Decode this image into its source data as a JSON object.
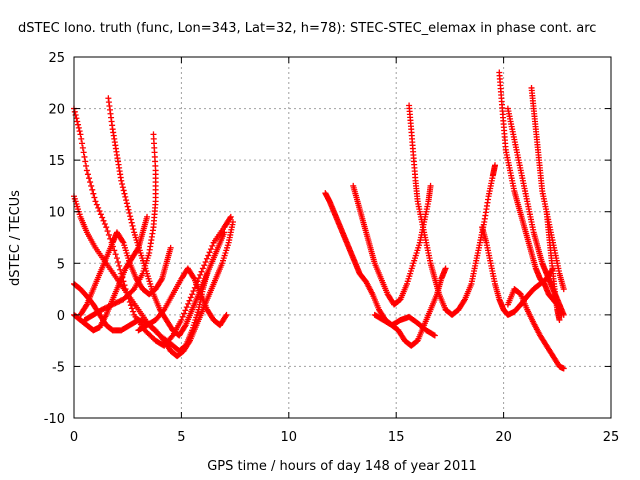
{
  "chart_data": {
    "type": "scatter",
    "title": "dSTEC Iono. truth (func, Lon=343, Lat=32, h=78): STEC-STEC_elemax in phase cont. arc",
    "xlabel": "GPS time / hours of day 148 of year 2011",
    "ylabel": "dSTEC  / TECUs",
    "xlim": [
      0,
      25
    ],
    "ylim": [
      -10,
      25
    ],
    "xticks": [
      "0",
      "5",
      "10",
      "15",
      "20",
      "25"
    ],
    "yticks": [
      "-10",
      "-5",
      "0",
      "5",
      "10",
      "15",
      "20",
      "25"
    ],
    "grid": true,
    "marker": "+",
    "color": "#ff0000",
    "series": [
      {
        "points": [
          [
            0.0,
            20.0
          ],
          [
            0.3,
            17.5
          ],
          [
            0.6,
            14.0
          ],
          [
            1.0,
            11.0
          ],
          [
            1.5,
            8.5
          ],
          [
            2.0,
            5.5
          ],
          [
            2.4,
            2.5
          ],
          [
            2.8,
            0.0
          ],
          [
            3.3,
            -1.5
          ],
          [
            3.8,
            -2.5
          ],
          [
            4.2,
            -3.0
          ],
          [
            4.6,
            -2.0
          ],
          [
            5.0,
            -0.5
          ],
          [
            5.5,
            2.0
          ],
          [
            6.0,
            4.5
          ],
          [
            6.5,
            7.0
          ],
          [
            7.0,
            8.5
          ],
          [
            7.3,
            9.5
          ]
        ]
      },
      {
        "points": [
          [
            0.0,
            11.5
          ],
          [
            0.3,
            9.5
          ],
          [
            0.6,
            8.0
          ],
          [
            1.0,
            6.5
          ],
          [
            1.5,
            5.0
          ],
          [
            2.0,
            3.5
          ],
          [
            2.5,
            2.0
          ],
          [
            3.0,
            0.5
          ],
          [
            3.5,
            -1.0
          ],
          [
            4.0,
            -2.0
          ],
          [
            4.5,
            -2.8
          ],
          [
            4.9,
            -3.5
          ],
          [
            5.2,
            -3.0
          ],
          [
            5.5,
            -1.5
          ],
          [
            5.8,
            0.5
          ],
          [
            6.0,
            2.5
          ],
          [
            6.2,
            4.0
          ]
        ]
      },
      {
        "points": [
          [
            0.0,
            3.0
          ],
          [
            0.3,
            2.5
          ],
          [
            0.6,
            1.8
          ],
          [
            0.9,
            1.0
          ],
          [
            1.2,
            0.0
          ],
          [
            1.5,
            -1.0
          ],
          [
            1.8,
            -1.5
          ],
          [
            2.2,
            -1.5
          ],
          [
            2.6,
            -1.0
          ],
          [
            3.0,
            -0.5
          ],
          [
            3.4,
            -0.8
          ],
          [
            3.8,
            -1.5
          ],
          [
            4.2,
            -2.5
          ],
          [
            4.5,
            -3.5
          ],
          [
            4.8,
            -4.0
          ],
          [
            5.1,
            -3.5
          ],
          [
            5.4,
            -2.5
          ],
          [
            5.7,
            -1.0
          ],
          [
            6.0,
            0.5
          ],
          [
            6.3,
            2.0
          ],
          [
            6.6,
            3.5
          ],
          [
            6.9,
            5.0
          ],
          [
            7.2,
            7.0
          ],
          [
            7.4,
            9.0
          ]
        ]
      },
      {
        "points": [
          [
            0.0,
            0.0
          ],
          [
            0.3,
            -0.5
          ],
          [
            0.6,
            -1.0
          ],
          [
            0.9,
            -1.5
          ],
          [
            1.2,
            -1.2
          ],
          [
            1.5,
            0.0
          ],
          [
            1.8,
            1.5
          ],
          [
            2.1,
            3.0
          ],
          [
            2.4,
            4.5
          ],
          [
            2.7,
            5.5
          ],
          [
            3.0,
            6.5
          ],
          [
            3.2,
            8.0
          ],
          [
            3.4,
            9.5
          ]
        ]
      },
      {
        "points": [
          [
            1.6,
            21.0
          ],
          [
            1.8,
            18.0
          ],
          [
            2.0,
            15.5
          ],
          [
            2.2,
            13.0
          ],
          [
            2.5,
            10.5
          ],
          [
            2.8,
            8.0
          ],
          [
            3.1,
            6.0
          ],
          [
            3.4,
            4.0
          ],
          [
            3.7,
            2.0
          ],
          [
            4.0,
            0.5
          ],
          [
            4.3,
            -0.5
          ],
          [
            4.6,
            -1.5
          ],
          [
            4.9,
            -2.0
          ],
          [
            5.2,
            -1.0
          ],
          [
            5.5,
            0.5
          ],
          [
            5.8,
            2.0
          ],
          [
            6.1,
            3.5
          ],
          [
            6.4,
            5.0
          ],
          [
            6.7,
            6.5
          ],
          [
            7.0,
            8.0
          ]
        ]
      },
      {
        "points": [
          [
            0.3,
            0.0
          ],
          [
            0.6,
            1.0
          ],
          [
            0.9,
            2.5
          ],
          [
            1.2,
            4.0
          ],
          [
            1.5,
            5.5
          ],
          [
            1.8,
            7.0
          ],
          [
            2.0,
            8.0
          ],
          [
            2.3,
            7.0
          ],
          [
            2.6,
            5.0
          ],
          [
            2.9,
            3.5
          ],
          [
            3.2,
            2.5
          ],
          [
            3.5,
            2.0
          ],
          [
            3.8,
            2.5
          ],
          [
            4.1,
            3.5
          ],
          [
            4.3,
            5.0
          ],
          [
            4.5,
            6.5
          ]
        ]
      },
      {
        "points": [
          [
            0.5,
            -0.5
          ],
          [
            0.9,
            0.0
          ],
          [
            1.3,
            0.5
          ],
          [
            1.8,
            1.0
          ],
          [
            2.3,
            1.5
          ],
          [
            2.8,
            2.5
          ],
          [
            3.2,
            4.0
          ],
          [
            3.5,
            6.0
          ],
          [
            3.7,
            8.5
          ],
          [
            3.8,
            11.0
          ],
          [
            3.8,
            14.0
          ],
          [
            3.7,
            17.5
          ]
        ]
      },
      {
        "points": [
          [
            3.0,
            -1.5
          ],
          [
            3.4,
            -1.0
          ],
          [
            3.8,
            -0.5
          ],
          [
            4.2,
            0.5
          ],
          [
            4.6,
            2.0
          ],
          [
            5.0,
            3.5
          ],
          [
            5.3,
            4.5
          ],
          [
            5.6,
            3.5
          ],
          [
            5.9,
            2.0
          ],
          [
            6.2,
            0.5
          ],
          [
            6.5,
            -0.5
          ],
          [
            6.8,
            -1.0
          ],
          [
            7.1,
            0.0
          ]
        ]
      },
      {
        "points": [
          [
            11.7,
            11.8
          ],
          [
            11.9,
            11.0
          ],
          [
            12.1,
            10.0
          ],
          [
            12.3,
            9.0
          ],
          [
            12.5,
            8.0
          ],
          [
            12.7,
            7.0
          ],
          [
            12.9,
            6.0
          ],
          [
            13.1,
            5.0
          ],
          [
            13.3,
            4.0
          ],
          [
            13.6,
            3.2
          ],
          [
            13.9,
            2.0
          ],
          [
            14.2,
            0.5
          ],
          [
            14.5,
            -0.5
          ],
          [
            14.8,
            -1.0
          ],
          [
            15.1,
            -1.5
          ],
          [
            15.4,
            -2.5
          ],
          [
            15.7,
            -3.0
          ],
          [
            16.0,
            -2.5
          ],
          [
            16.3,
            -1.0
          ],
          [
            16.6,
            0.5
          ],
          [
            16.9,
            2.0
          ],
          [
            17.1,
            3.5
          ],
          [
            17.3,
            4.5
          ]
        ]
      },
      {
        "points": [
          [
            13.0,
            12.5
          ],
          [
            13.2,
            11.0
          ],
          [
            13.4,
            9.5
          ],
          [
            13.6,
            8.0
          ],
          [
            13.8,
            6.5
          ],
          [
            14.0,
            5.0
          ],
          [
            14.3,
            3.5
          ],
          [
            14.6,
            2.0
          ],
          [
            14.9,
            1.0
          ],
          [
            15.2,
            1.5
          ],
          [
            15.5,
            3.0
          ],
          [
            15.8,
            5.0
          ],
          [
            16.1,
            7.0
          ],
          [
            16.3,
            9.0
          ],
          [
            16.5,
            11.0
          ],
          [
            16.6,
            12.5
          ]
        ]
      },
      {
        "points": [
          [
            15.6,
            20.3
          ],
          [
            15.7,
            18.0
          ],
          [
            15.8,
            15.5
          ],
          [
            15.9,
            13.0
          ],
          [
            16.0,
            11.0
          ],
          [
            16.2,
            9.0
          ],
          [
            16.4,
            7.0
          ],
          [
            16.6,
            5.0
          ],
          [
            16.8,
            3.5
          ],
          [
            17.0,
            2.0
          ],
          [
            17.3,
            0.5
          ],
          [
            17.6,
            0.0
          ],
          [
            17.9,
            0.5
          ],
          [
            18.2,
            1.5
          ],
          [
            18.5,
            3.0
          ],
          [
            18.7,
            5.0
          ],
          [
            18.9,
            7.0
          ],
          [
            19.1,
            9.0
          ],
          [
            19.3,
            11.5
          ],
          [
            19.5,
            13.5
          ],
          [
            19.6,
            14.5
          ]
        ]
      },
      {
        "points": [
          [
            14.0,
            0.0
          ],
          [
            14.4,
            -0.5
          ],
          [
            14.8,
            -1.0
          ],
          [
            15.2,
            -0.5
          ],
          [
            15.6,
            -0.2
          ],
          [
            16.0,
            -0.8
          ],
          [
            16.4,
            -1.5
          ],
          [
            16.8,
            -2.0
          ]
        ]
      },
      {
        "points": [
          [
            19.8,
            23.5
          ],
          [
            19.9,
            21.0
          ],
          [
            20.0,
            18.5
          ],
          [
            20.1,
            16.0
          ],
          [
            20.3,
            14.0
          ],
          [
            20.5,
            12.0
          ],
          [
            20.7,
            10.5
          ],
          [
            20.9,
            9.0
          ],
          [
            21.1,
            7.5
          ],
          [
            21.3,
            6.0
          ],
          [
            21.5,
            4.5
          ],
          [
            21.7,
            3.5
          ],
          [
            21.9,
            3.0
          ],
          [
            22.1,
            2.0
          ],
          [
            22.3,
            1.5
          ],
          [
            22.5,
            1.0
          ],
          [
            22.7,
            0.0
          ]
        ]
      },
      {
        "points": [
          [
            20.2,
            20.0
          ],
          [
            20.4,
            18.0
          ],
          [
            20.6,
            16.0
          ],
          [
            20.8,
            14.0
          ],
          [
            21.0,
            12.0
          ],
          [
            21.2,
            10.0
          ],
          [
            21.4,
            8.0
          ],
          [
            21.6,
            6.5
          ],
          [
            21.8,
            5.0
          ],
          [
            22.0,
            4.0
          ],
          [
            22.2,
            3.0
          ],
          [
            22.4,
            2.0
          ],
          [
            22.6,
            1.0
          ],
          [
            22.8,
            0.0
          ]
        ]
      },
      {
        "points": [
          [
            21.3,
            22.0
          ],
          [
            21.4,
            20.0
          ],
          [
            21.5,
            18.0
          ],
          [
            21.6,
            16.0
          ],
          [
            21.7,
            14.0
          ],
          [
            21.8,
            12.0
          ],
          [
            22.0,
            10.0
          ],
          [
            22.2,
            8.0
          ],
          [
            22.4,
            6.0
          ],
          [
            22.6,
            4.0
          ],
          [
            22.8,
            2.5
          ]
        ]
      },
      {
        "points": [
          [
            19.0,
            8.5
          ],
          [
            19.2,
            7.0
          ],
          [
            19.4,
            5.0
          ],
          [
            19.6,
            3.0
          ],
          [
            19.8,
            1.5
          ],
          [
            20.0,
            0.5
          ],
          [
            20.2,
            0.0
          ],
          [
            20.5,
            0.3
          ],
          [
            20.8,
            1.0
          ],
          [
            21.1,
            1.8
          ],
          [
            21.4,
            2.5
          ],
          [
            21.7,
            3.0
          ],
          [
            22.0,
            3.5
          ],
          [
            22.3,
            4.5
          ]
        ]
      },
      {
        "points": [
          [
            20.2,
            1.0
          ],
          [
            20.5,
            2.5
          ],
          [
            20.8,
            2.0
          ],
          [
            21.1,
            0.5
          ],
          [
            21.4,
            -0.8
          ],
          [
            21.7,
            -2.0
          ],
          [
            22.0,
            -3.0
          ],
          [
            22.3,
            -4.0
          ],
          [
            22.6,
            -5.0
          ],
          [
            22.8,
            -5.2
          ]
        ]
      },
      {
        "points": [
          [
            22.0,
            10.0
          ],
          [
            22.1,
            8.0
          ],
          [
            22.2,
            6.0
          ],
          [
            22.3,
            4.0
          ],
          [
            22.4,
            2.0
          ],
          [
            22.5,
            0.5
          ],
          [
            22.6,
            -0.5
          ]
        ]
      }
    ]
  }
}
